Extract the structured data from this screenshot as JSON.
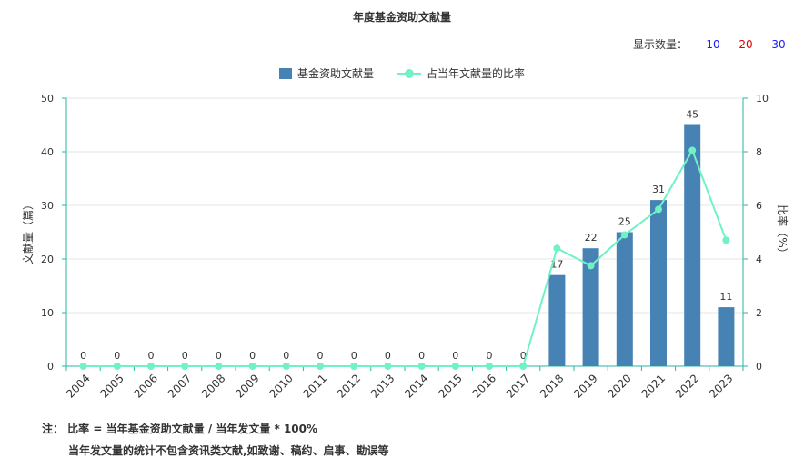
{
  "page": {
    "title": "年度基金资助文献量",
    "count_label": "显示数量：",
    "count_options": [
      {
        "label": "10",
        "color": "#1a1aff"
      },
      {
        "label": "20",
        "color": "#e00000"
      },
      {
        "label": "30",
        "color": "#1a1aff"
      }
    ],
    "note_line1": "注： 比率 = 当年基金资助文献量 / 当年发文量 * 100%",
    "note_line2": "当年发文量的统计不包含资讯类文献,如致谢、稿约、启事、勘误等"
  },
  "chart_data": {
    "type": "bar",
    "title": "年度基金资助文献量",
    "categories": [
      "2004",
      "2005",
      "2006",
      "2007",
      "2008",
      "2009",
      "2010",
      "2011",
      "2012",
      "2013",
      "2014",
      "2015",
      "2016",
      "2017",
      "2018",
      "2019",
      "2020",
      "2021",
      "2022",
      "2023"
    ],
    "series": [
      {
        "name": "基金资助文献量",
        "type": "bar",
        "axis": "left",
        "color": "#4682b4",
        "values": [
          0,
          0,
          0,
          0,
          0,
          0,
          0,
          0,
          0,
          0,
          0,
          0,
          0,
          0,
          17,
          22,
          25,
          31,
          45,
          11
        ]
      },
      {
        "name": "占当年文献量的比率",
        "type": "line",
        "axis": "right",
        "color": "#6ff2c4",
        "values": [
          0,
          0,
          0,
          0,
          0,
          0,
          0,
          0,
          0,
          0,
          0,
          0,
          0,
          0,
          4.4,
          3.75,
          4.9,
          5.85,
          8.05,
          4.7
        ]
      }
    ],
    "ylabel": "文献量（篇）",
    "y2label": "比率（%）",
    "ylim": [
      0,
      50
    ],
    "y2lim": [
      0,
      10
    ],
    "yticks": [
      "0",
      "10",
      "20",
      "30",
      "40",
      "50"
    ],
    "y2ticks": [
      "0",
      "2",
      "4",
      "6",
      "8",
      "10"
    ],
    "legend_position": "top-center",
    "grid": true
  }
}
